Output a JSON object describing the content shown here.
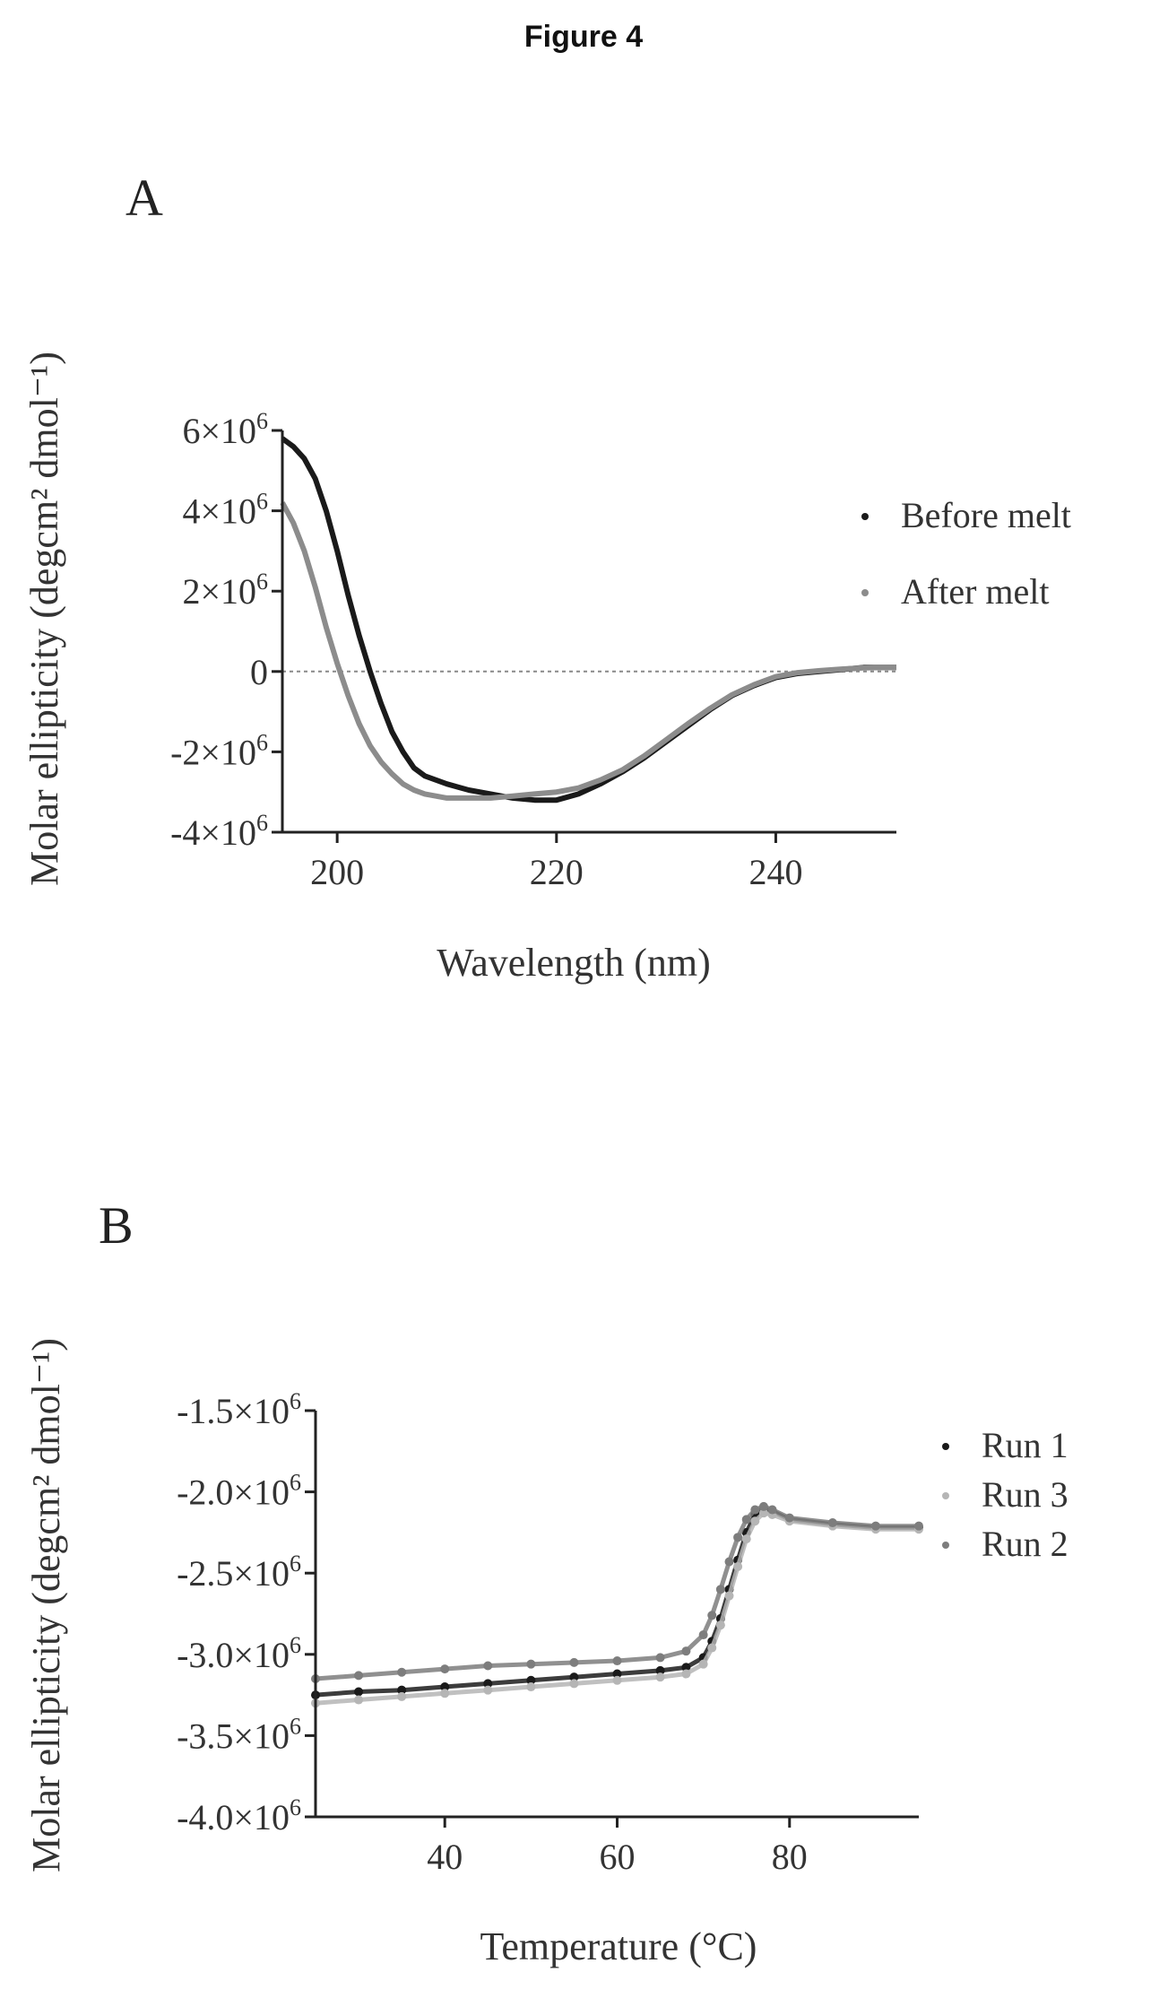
{
  "figure_title": "Figure 4",
  "chart_data": [
    {
      "panel": "A",
      "type": "line",
      "xlabel": "Wavelength (nm)",
      "ylabel": "Molar ellipticity (degcm² dmol⁻¹)",
      "xlim": [
        195,
        251
      ],
      "ylim": [
        -4000000,
        6000000
      ],
      "x_ticks": [
        200,
        220,
        240
      ],
      "y_ticks": [
        {
          "value": -4000000,
          "base": "-4×10",
          "exp": "6"
        },
        {
          "value": -2000000,
          "base": "-2×10",
          "exp": "6"
        },
        {
          "value": 0,
          "base": "0",
          "exp": ""
        },
        {
          "value": 2000000,
          "base": "2×10",
          "exp": "6"
        },
        {
          "value": 4000000,
          "base": "4×10",
          "exp": "6"
        },
        {
          "value": 6000000,
          "base": "6×10",
          "exp": "6"
        }
      ],
      "zero_line": true,
      "legend_position": "right",
      "series": [
        {
          "name": "Before melt",
          "color": "#1a1a1a",
          "x": [
            195,
            196,
            197,
            198,
            199,
            200,
            201,
            202,
            203,
            204,
            205,
            206,
            207,
            208,
            210,
            212,
            214,
            216,
            218,
            220,
            222,
            224,
            226,
            228,
            230,
            232,
            234,
            236,
            238,
            240,
            242,
            244,
            246,
            248,
            250,
            251
          ],
          "y": [
            5800000,
            5600000,
            5300000,
            4800000,
            4000000,
            3000000,
            1900000,
            900000,
            0,
            -800000,
            -1500000,
            -2000000,
            -2400000,
            -2600000,
            -2800000,
            -2950000,
            -3050000,
            -3150000,
            -3200000,
            -3200000,
            -3050000,
            -2800000,
            -2500000,
            -2150000,
            -1750000,
            -1350000,
            -950000,
            -600000,
            -350000,
            -150000,
            -50000,
            0,
            50000,
            100000,
            100000,
            100000
          ]
        },
        {
          "name": "After melt",
          "color": "#8c8c8c",
          "x": [
            195,
            196,
            197,
            198,
            199,
            200,
            201,
            202,
            203,
            204,
            205,
            206,
            207,
            208,
            210,
            212,
            214,
            216,
            218,
            220,
            222,
            224,
            226,
            228,
            230,
            232,
            234,
            236,
            238,
            240,
            242,
            244,
            246,
            248,
            250,
            251
          ],
          "y": [
            4200000,
            3700000,
            3000000,
            2100000,
            1100000,
            200000,
            -600000,
            -1300000,
            -1850000,
            -2250000,
            -2550000,
            -2800000,
            -2950000,
            -3050000,
            -3150000,
            -3150000,
            -3150000,
            -3100000,
            -3050000,
            -3000000,
            -2900000,
            -2700000,
            -2450000,
            -2100000,
            -1700000,
            -1300000,
            -920000,
            -580000,
            -330000,
            -130000,
            -30000,
            20000,
            60000,
            90000,
            100000,
            100000
          ]
        }
      ]
    },
    {
      "panel": "B",
      "type": "scatter",
      "xlabel": "Temperature (°C)",
      "ylabel": "Molar ellipticity (degcm² dmol⁻¹)",
      "xlim": [
        25,
        95
      ],
      "ylim": [
        -4000000,
        -1500000
      ],
      "x_ticks": [
        40,
        60,
        80
      ],
      "y_ticks": [
        {
          "value": -4000000,
          "base": "-4.0×10",
          "exp": "6"
        },
        {
          "value": -3500000,
          "base": "-3.5×10",
          "exp": "6"
        },
        {
          "value": -3000000,
          "base": "-3.0×10",
          "exp": "6"
        },
        {
          "value": -2500000,
          "base": "-2.5×10",
          "exp": "6"
        },
        {
          "value": -2000000,
          "base": "-2.0×10",
          "exp": "6"
        },
        {
          "value": -1500000,
          "base": "-1.5×10",
          "exp": "6"
        }
      ],
      "legend_position": "right",
      "series": [
        {
          "name": "Run 1",
          "color": "#1a1a1a",
          "x": [
            25,
            30,
            35,
            40,
            45,
            50,
            55,
            60,
            65,
            68,
            70,
            71,
            72,
            73,
            74,
            75,
            76,
            77,
            78,
            80,
            85,
            90,
            95
          ],
          "y": [
            -3250000,
            -3230000,
            -3220000,
            -3200000,
            -3180000,
            -3160000,
            -3140000,
            -3120000,
            -3100000,
            -3080000,
            -3020000,
            -2920000,
            -2780000,
            -2600000,
            -2420000,
            -2250000,
            -2140000,
            -2100000,
            -2120000,
            -2170000,
            -2200000,
            -2220000,
            -2220000
          ]
        },
        {
          "name": "Run 3",
          "color": "#b5b5b5",
          "x": [
            25,
            30,
            35,
            40,
            45,
            50,
            55,
            60,
            65,
            68,
            70,
            71,
            72,
            73,
            74,
            75,
            76,
            77,
            78,
            80,
            85,
            90,
            95
          ],
          "y": [
            -3300000,
            -3280000,
            -3260000,
            -3240000,
            -3220000,
            -3200000,
            -3180000,
            -3160000,
            -3140000,
            -3120000,
            -3060000,
            -2960000,
            -2820000,
            -2640000,
            -2460000,
            -2290000,
            -2180000,
            -2130000,
            -2140000,
            -2180000,
            -2210000,
            -2230000,
            -2230000
          ]
        },
        {
          "name": "Run 2",
          "color": "#7d7d7d",
          "x": [
            25,
            30,
            35,
            40,
            45,
            50,
            55,
            60,
            65,
            68,
            70,
            71,
            72,
            73,
            74,
            75,
            76,
            77,
            78,
            80,
            85,
            90,
            95
          ],
          "y": [
            -3150000,
            -3130000,
            -3110000,
            -3090000,
            -3070000,
            -3060000,
            -3050000,
            -3040000,
            -3020000,
            -2980000,
            -2880000,
            -2760000,
            -2600000,
            -2430000,
            -2280000,
            -2170000,
            -2110000,
            -2090000,
            -2110000,
            -2160000,
            -2190000,
            -2210000,
            -2210000
          ]
        }
      ]
    }
  ]
}
